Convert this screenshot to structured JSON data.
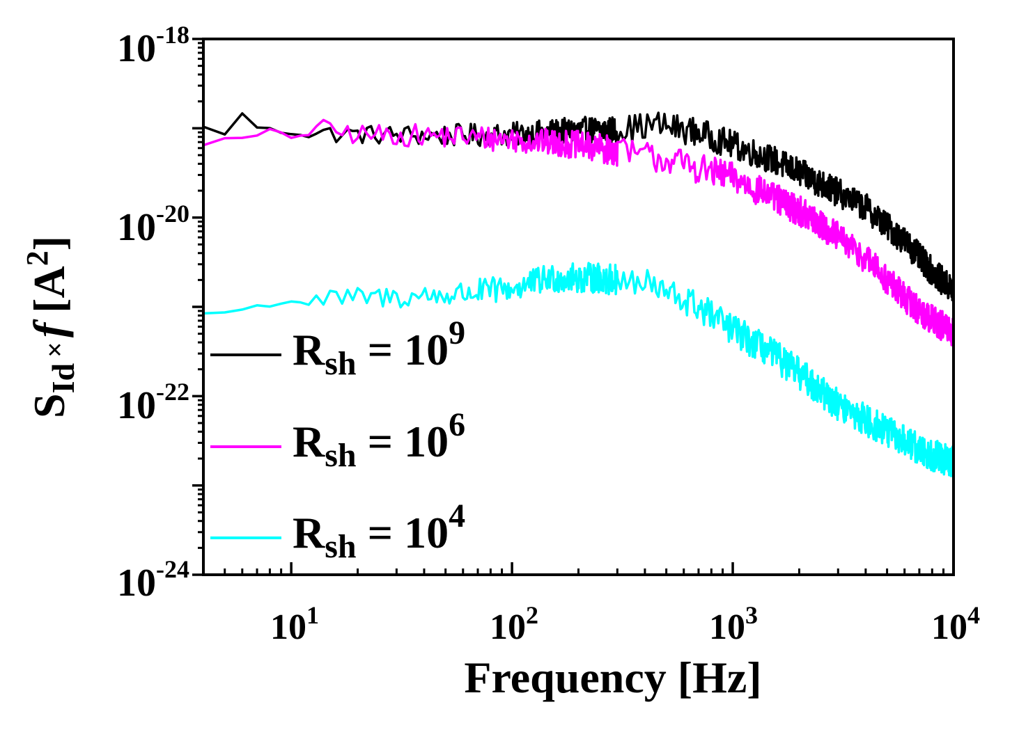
{
  "chart_data": {
    "type": "line",
    "title": "",
    "xlabel": "Frequency [Hz]",
    "ylabel": {
      "s": "S",
      "sub": "Id",
      "times": "×",
      "f": "f",
      "unit_open": "[A",
      "unit_sup": "2",
      "unit_close": "]"
    },
    "xscale": "log",
    "yscale": "log",
    "xlim": [
      4,
      10000
    ],
    "ylim": [
      1e-24,
      1e-18
    ],
    "x_ticks": [
      {
        "value": 10,
        "base": "10",
        "exp": "1"
      },
      {
        "value": 100,
        "base": "10",
        "exp": "2"
      },
      {
        "value": 1000,
        "base": "10",
        "exp": "3"
      },
      {
        "value": 10000,
        "base": "10",
        "exp": "4"
      }
    ],
    "y_ticks": [
      {
        "value": 1e-18,
        "base": "10",
        "exp": "-18"
      },
      {
        "value": 1e-20,
        "base": "10",
        "exp": "-20"
      },
      {
        "value": 1e-22,
        "base": "10",
        "exp": "-22"
      },
      {
        "value": 1e-24,
        "base": "10",
        "exp": "-24"
      }
    ],
    "legend_position": "bottom-left",
    "series": [
      {
        "name": "R_sh = 10^9",
        "label": {
          "r": "R",
          "sub": "sh",
          "eq": " = 10",
          "sup": "9"
        },
        "color": "#000000",
        "noise": 0.16,
        "points": [
          [
            4,
            1e-19
          ],
          [
            5,
            9e-20
          ],
          [
            6,
            1.4e-19
          ],
          [
            7,
            1.05e-19
          ],
          [
            8,
            9.5e-20
          ],
          [
            10,
            9e-20
          ],
          [
            20,
            8.5e-20
          ],
          [
            50,
            8.3e-20
          ],
          [
            100,
            8.5e-20
          ],
          [
            200,
            9.5e-20
          ],
          [
            300,
            9.5e-20
          ],
          [
            450,
            1.1e-19
          ],
          [
            700,
            9e-20
          ],
          [
            1000,
            6.5e-20
          ],
          [
            1500,
            4.5e-20
          ],
          [
            2000,
            3.2e-20
          ],
          [
            3000,
            1.9e-20
          ],
          [
            4000,
            1.3e-20
          ],
          [
            5000,
            8e-21
          ],
          [
            6000,
            5.5e-21
          ],
          [
            8000,
            2.5e-21
          ],
          [
            10000,
            1.5e-21
          ]
        ]
      },
      {
        "name": "R_sh = 10^6",
        "label": {
          "r": "R",
          "sub": "sh",
          "eq": " = 10",
          "sup": "6"
        },
        "color": "#ff00ff",
        "noise": 0.17,
        "points": [
          [
            4,
            7e-20
          ],
          [
            6,
            7.5e-20
          ],
          [
            8,
            9e-20
          ],
          [
            10,
            8e-20
          ],
          [
            13,
            1e-19
          ],
          [
            20,
            8.5e-20
          ],
          [
            50,
            8.2e-20
          ],
          [
            100,
            7.5e-20
          ],
          [
            200,
            6.5e-20
          ],
          [
            500,
            4.5e-20
          ],
          [
            1000,
            2.8e-20
          ],
          [
            2000,
            1.2e-20
          ],
          [
            3000,
            6e-21
          ],
          [
            4000,
            3.5e-21
          ],
          [
            5000,
            2e-21
          ],
          [
            7000,
            9e-22
          ],
          [
            10000,
            5e-22
          ]
        ]
      },
      {
        "name": "R_sh = 10^4",
        "label": {
          "r": "R",
          "sub": "sh",
          "eq": " = 10",
          "sup": "4"
        },
        "color": "#00ffff",
        "noise": 0.18,
        "points": [
          [
            4,
            8.5e-22
          ],
          [
            6,
            9e-22
          ],
          [
            8,
            1.1e-21
          ],
          [
            10,
            1.15e-21
          ],
          [
            20,
            1.25e-21
          ],
          [
            50,
            1.35e-21
          ],
          [
            100,
            1.6e-21
          ],
          [
            150,
            2.1e-21
          ],
          [
            250,
            2.1e-21
          ],
          [
            400,
            1.8e-21
          ],
          [
            700,
            1e-21
          ],
          [
            1000,
            5.5e-22
          ],
          [
            1500,
            3e-22
          ],
          [
            2000,
            1.8e-22
          ],
          [
            3000,
            8e-23
          ],
          [
            5000,
            4e-23
          ],
          [
            7000,
            2.5e-23
          ],
          [
            10000,
            1.8e-23
          ]
        ]
      }
    ]
  }
}
